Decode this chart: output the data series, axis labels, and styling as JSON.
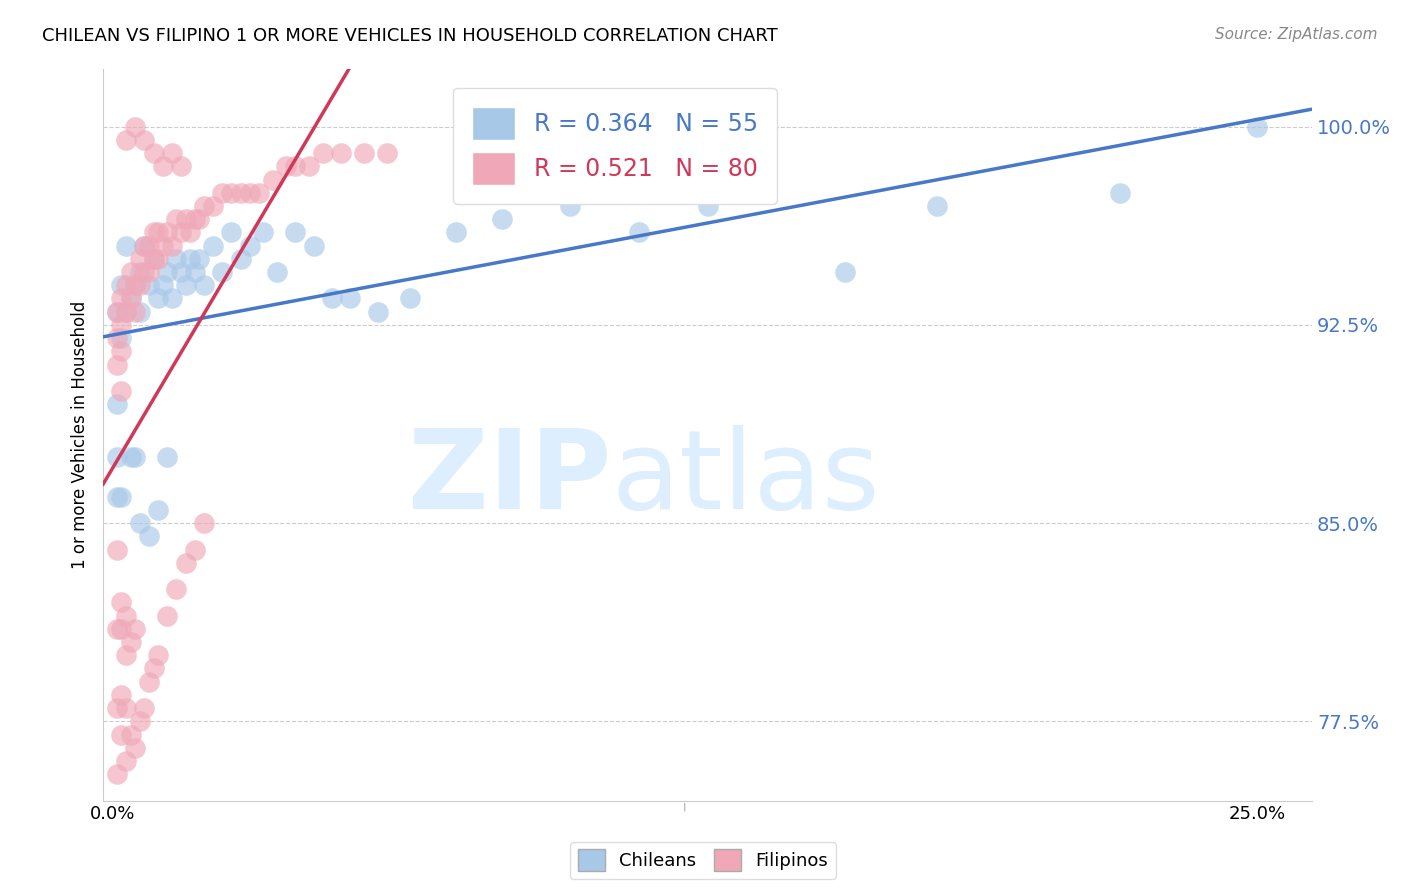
{
  "title": "CHILEAN VS FILIPINO 1 OR MORE VEHICLES IN HOUSEHOLD CORRELATION CHART",
  "source": "Source: ZipAtlas.com",
  "ylabel": "1 or more Vehicles in Household",
  "ylim": [
    0.745,
    1.022
  ],
  "xlim": [
    -0.002,
    0.262
  ],
  "ytick_positions": [
    0.775,
    0.85,
    0.925,
    1.0
  ],
  "ytick_labels": [
    "77.5%",
    "85.0%",
    "92.5%",
    "100.0%"
  ],
  "legend_blue_r": "0.364",
  "legend_blue_n": "55",
  "legend_pink_r": "0.521",
  "legend_pink_n": "80",
  "blue_color": "#a8c8e8",
  "pink_color": "#f0a8b8",
  "blue_line_color": "#4878c8",
  "pink_line_color": "#d03858",
  "watermark_zip": "ZIP",
  "watermark_atlas": "atlas",
  "watermark_color": "#ddeeff",
  "chileans_x": [
    0.001,
    0.001,
    0.001,
    0.002,
    0.002,
    0.003,
    0.003,
    0.004,
    0.005,
    0.006,
    0.006,
    0.007,
    0.008,
    0.009,
    0.01,
    0.011,
    0.012,
    0.013,
    0.014,
    0.015,
    0.016,
    0.017,
    0.018,
    0.019,
    0.02,
    0.022,
    0.024,
    0.026,
    0.028,
    0.03,
    0.033,
    0.036,
    0.04,
    0.044,
    0.048,
    0.052,
    0.058,
    0.065,
    0.075,
    0.085,
    0.1,
    0.115,
    0.13,
    0.16,
    0.18,
    0.22,
    0.25,
    0.001,
    0.002,
    0.004,
    0.005,
    0.006,
    0.008,
    0.01,
    0.012
  ],
  "chileans_y": [
    0.93,
    0.895,
    0.86,
    0.94,
    0.92,
    0.955,
    0.93,
    0.935,
    0.94,
    0.945,
    0.93,
    0.955,
    0.94,
    0.95,
    0.935,
    0.94,
    0.945,
    0.935,
    0.95,
    0.945,
    0.94,
    0.95,
    0.945,
    0.95,
    0.94,
    0.955,
    0.945,
    0.96,
    0.95,
    0.955,
    0.96,
    0.945,
    0.96,
    0.955,
    0.935,
    0.935,
    0.93,
    0.935,
    0.96,
    0.965,
    0.97,
    0.96,
    0.97,
    0.945,
    0.97,
    0.975,
    1.0,
    0.875,
    0.86,
    0.875,
    0.875,
    0.85,
    0.845,
    0.855,
    0.875
  ],
  "filipinos_x": [
    0.001,
    0.001,
    0.001,
    0.001,
    0.002,
    0.002,
    0.002,
    0.002,
    0.003,
    0.003,
    0.004,
    0.004,
    0.005,
    0.005,
    0.006,
    0.006,
    0.007,
    0.007,
    0.008,
    0.008,
    0.009,
    0.009,
    0.01,
    0.01,
    0.011,
    0.012,
    0.013,
    0.014,
    0.015,
    0.016,
    0.017,
    0.018,
    0.019,
    0.02,
    0.022,
    0.024,
    0.026,
    0.028,
    0.03,
    0.032,
    0.035,
    0.038,
    0.04,
    0.043,
    0.046,
    0.05,
    0.055,
    0.06,
    0.001,
    0.001,
    0.002,
    0.002,
    0.003,
    0.003,
    0.004,
    0.005,
    0.001,
    0.002,
    0.002,
    0.003,
    0.003,
    0.004,
    0.005,
    0.006,
    0.007,
    0.008,
    0.009,
    0.01,
    0.012,
    0.014,
    0.016,
    0.018,
    0.02,
    0.003,
    0.005,
    0.007,
    0.009,
    0.011,
    0.013,
    0.015
  ],
  "filipinos_y": [
    0.93,
    0.92,
    0.91,
    0.755,
    0.935,
    0.925,
    0.915,
    0.9,
    0.94,
    0.93,
    0.945,
    0.935,
    0.94,
    0.93,
    0.95,
    0.94,
    0.955,
    0.945,
    0.955,
    0.945,
    0.96,
    0.95,
    0.96,
    0.95,
    0.955,
    0.96,
    0.955,
    0.965,
    0.96,
    0.965,
    0.96,
    0.965,
    0.965,
    0.97,
    0.97,
    0.975,
    0.975,
    0.975,
    0.975,
    0.975,
    0.98,
    0.985,
    0.985,
    0.985,
    0.99,
    0.99,
    0.99,
    0.99,
    0.84,
    0.81,
    0.82,
    0.81,
    0.815,
    0.8,
    0.805,
    0.81,
    0.78,
    0.785,
    0.77,
    0.78,
    0.76,
    0.77,
    0.765,
    0.775,
    0.78,
    0.79,
    0.795,
    0.8,
    0.815,
    0.825,
    0.835,
    0.84,
    0.85,
    0.995,
    1.0,
    0.995,
    0.99,
    0.985,
    0.99,
    0.985
  ]
}
